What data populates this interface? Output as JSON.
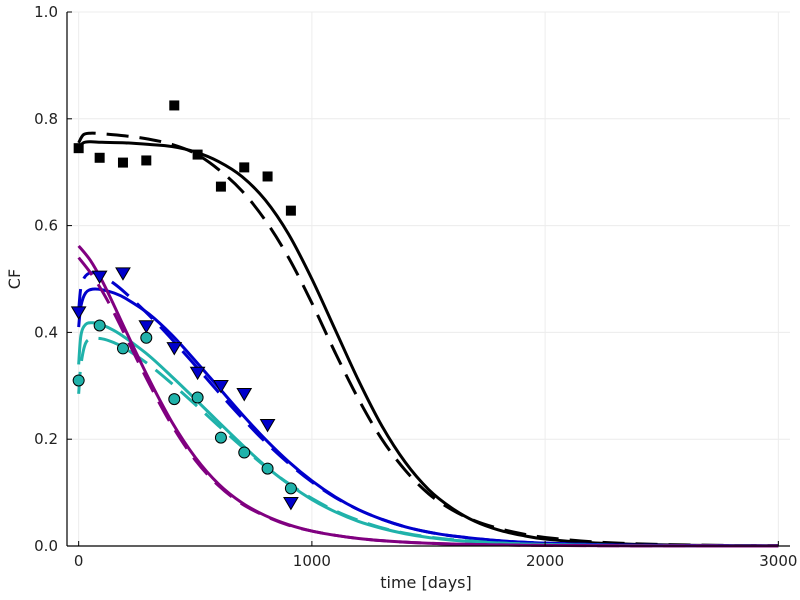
{
  "chart_data": {
    "type": "line",
    "title": "",
    "xlabel": "time [days]",
    "ylabel": "CF",
    "xlim": [
      -50,
      3050
    ],
    "ylim": [
      0,
      1
    ],
    "x_ticks": [
      0,
      1000,
      2000,
      3000
    ],
    "x_tick_labels": [
      "0",
      "1000",
      "2000",
      "3000"
    ],
    "y_ticks": [
      0,
      0.2,
      0.4,
      0.6,
      0.8,
      1.0
    ],
    "y_tick_labels": [
      "0.0",
      "0.2",
      "0.4",
      "0.6",
      "0.8",
      "1.0"
    ],
    "grid": true,
    "legend": "none",
    "series": [
      {
        "name": "black-observed",
        "kind": "scatter",
        "marker": "square",
        "color": "#000000",
        "x": [
          0,
          90,
          190,
          290,
          410,
          510,
          610,
          710,
          810,
          910
        ],
        "y": [
          0.745,
          0.727,
          0.718,
          0.722,
          0.825,
          0.733,
          0.673,
          0.709,
          0.692,
          0.628
        ]
      },
      {
        "name": "blue-observed",
        "kind": "scatter",
        "marker": "triangle-down",
        "color": "#0000cc",
        "x": [
          0,
          90,
          190,
          290,
          410,
          510,
          610,
          710,
          810,
          910
        ],
        "y": [
          0.438,
          0.505,
          0.511,
          0.412,
          0.371,
          0.325,
          0.3,
          0.285,
          0.227,
          0.081
        ]
      },
      {
        "name": "teal-observed",
        "kind": "scatter",
        "marker": "circle",
        "color": "#20b2aa",
        "x": [
          0,
          90,
          190,
          290,
          410,
          510,
          610,
          710,
          810,
          910
        ],
        "y": [
          0.31,
          0.413,
          0.37,
          0.39,
          0.275,
          0.278,
          0.203,
          0.175,
          0.145,
          0.108
        ]
      },
      {
        "name": "black-model-solid",
        "kind": "line",
        "dash": "solid",
        "color": "#000000",
        "x": [
          0,
          20,
          50,
          100,
          200,
          300,
          400,
          500,
          600,
          700,
          800,
          900,
          1000,
          1100,
          1200,
          1300,
          1400,
          1500,
          1600,
          1700,
          1800,
          1900,
          2000,
          2200,
          2400,
          2600,
          2800,
          3000
        ],
        "y": [
          0.745,
          0.755,
          0.757,
          0.756,
          0.755,
          0.752,
          0.748,
          0.738,
          0.72,
          0.692,
          0.648,
          0.584,
          0.5,
          0.405,
          0.31,
          0.225,
          0.157,
          0.106,
          0.071,
          0.046,
          0.03,
          0.02,
          0.013,
          0.006,
          0.003,
          0.0015,
          0.0008,
          0.0004
        ]
      },
      {
        "name": "black-model-dashed",
        "kind": "line",
        "dash": "dashed",
        "color": "#000000",
        "x": [
          0,
          20,
          50,
          100,
          200,
          300,
          400,
          500,
          600,
          700,
          800,
          900,
          1000,
          1100,
          1200,
          1300,
          1400,
          1500,
          1600,
          1700,
          1800,
          1900,
          2000,
          2200,
          2400,
          2600,
          2800,
          3000
        ],
        "y": [
          0.755,
          0.77,
          0.773,
          0.772,
          0.768,
          0.762,
          0.752,
          0.735,
          0.705,
          0.665,
          0.61,
          0.54,
          0.455,
          0.362,
          0.275,
          0.2,
          0.142,
          0.098,
          0.068,
          0.047,
          0.033,
          0.023,
          0.016,
          0.008,
          0.004,
          0.002,
          0.001,
          0.0005
        ]
      },
      {
        "name": "blue-model-solid",
        "kind": "line",
        "dash": "solid",
        "color": "#0000cc",
        "x": [
          0,
          10,
          30,
          60,
          100,
          150,
          200,
          300,
          400,
          500,
          600,
          700,
          800,
          900,
          1000,
          1100,
          1200,
          1300,
          1400,
          1500,
          1600,
          1800,
          2000,
          2200,
          2400,
          2600,
          2800,
          3000
        ],
        "y": [
          0.41,
          0.45,
          0.474,
          0.481,
          0.48,
          0.474,
          0.464,
          0.435,
          0.395,
          0.347,
          0.297,
          0.247,
          0.2,
          0.158,
          0.122,
          0.092,
          0.068,
          0.05,
          0.036,
          0.026,
          0.019,
          0.01,
          0.0053,
          0.0028,
          0.0015,
          0.0008,
          0.0004,
          0.0002
        ]
      },
      {
        "name": "blue-model-dashed",
        "kind": "line",
        "dash": "dashed",
        "color": "#0000cc",
        "x": [
          0,
          10,
          30,
          60,
          100,
          150,
          200,
          300,
          400,
          500,
          600,
          700,
          800,
          900,
          1000,
          1100,
          1200,
          1300,
          1400,
          1500,
          1600,
          1800,
          2000,
          2200,
          2400,
          2600,
          2800,
          3000
        ],
        "y": [
          0.44,
          0.485,
          0.506,
          0.512,
          0.506,
          0.492,
          0.474,
          0.433,
          0.387,
          0.338,
          0.288,
          0.24,
          0.195,
          0.155,
          0.12,
          0.091,
          0.068,
          0.05,
          0.036,
          0.026,
          0.019,
          0.01,
          0.0053,
          0.0028,
          0.0015,
          0.0008,
          0.0004,
          0.0002
        ]
      },
      {
        "name": "teal-model-solid",
        "kind": "line",
        "dash": "solid",
        "color": "#20b2aa",
        "x": [
          0,
          10,
          30,
          60,
          100,
          150,
          200,
          300,
          400,
          500,
          600,
          700,
          800,
          900,
          1000,
          1100,
          1200,
          1300,
          1400,
          1500,
          1600,
          1800,
          2000,
          2200,
          2400,
          2600,
          2800,
          3000
        ],
        "y": [
          0.34,
          0.395,
          0.415,
          0.418,
          0.414,
          0.404,
          0.39,
          0.357,
          0.317,
          0.275,
          0.232,
          0.19,
          0.15,
          0.116,
          0.087,
          0.064,
          0.046,
          0.033,
          0.023,
          0.016,
          0.011,
          0.0055,
          0.0027,
          0.0013,
          0.0007,
          0.0003,
          0.0002,
          0.0001
        ]
      },
      {
        "name": "teal-model-dashed",
        "kind": "line",
        "dash": "dashed",
        "color": "#20b2aa",
        "x": [
          0,
          10,
          30,
          60,
          100,
          150,
          200,
          300,
          400,
          500,
          600,
          700,
          800,
          900,
          1000,
          1100,
          1200,
          1300,
          1400,
          1500,
          1600,
          1800,
          2000,
          2200,
          2400,
          2600,
          2800,
          3000
        ],
        "y": [
          0.285,
          0.34,
          0.38,
          0.388,
          0.388,
          0.381,
          0.37,
          0.34,
          0.304,
          0.265,
          0.225,
          0.186,
          0.149,
          0.117,
          0.089,
          0.066,
          0.048,
          0.034,
          0.024,
          0.017,
          0.012,
          0.0058,
          0.0028,
          0.0014,
          0.0007,
          0.0003,
          0.0002,
          0.0001
        ]
      },
      {
        "name": "purple-model-solid",
        "kind": "line",
        "dash": "solid",
        "color": "#800080",
        "x": [
          0,
          50,
          100,
          150,
          200,
          300,
          400,
          500,
          600,
          700,
          800,
          900,
          1000,
          1100,
          1200,
          1300,
          1400,
          1500,
          1600,
          1800,
          2000,
          2200,
          2400,
          2600,
          2800,
          3000
        ],
        "y": [
          0.562,
          0.535,
          0.497,
          0.452,
          0.405,
          0.314,
          0.232,
          0.166,
          0.116,
          0.081,
          0.057,
          0.04,
          0.028,
          0.02,
          0.014,
          0.01,
          0.0072,
          0.0052,
          0.0038,
          0.002,
          0.0011,
          0.0006,
          0.0003,
          0.0002,
          0.0001,
          5e-05
        ]
      },
      {
        "name": "purple-model-dashed",
        "kind": "line",
        "dash": "dashed",
        "color": "#800080",
        "x": [
          0,
          50,
          100,
          150,
          200,
          300,
          400,
          500,
          600,
          700,
          800,
          900,
          1000,
          1100,
          1200,
          1300,
          1400,
          1500,
          1600,
          1800,
          2000,
          2200,
          2400,
          2600,
          2800,
          3000
        ],
        "y": [
          0.54,
          0.512,
          0.478,
          0.438,
          0.394,
          0.306,
          0.226,
          0.161,
          0.113,
          0.079,
          0.056,
          0.039,
          0.028,
          0.02,
          0.014,
          0.01,
          0.0072,
          0.0052,
          0.0038,
          0.002,
          0.0011,
          0.0006,
          0.0003,
          0.0002,
          0.0001,
          5e-05
        ]
      }
    ]
  }
}
